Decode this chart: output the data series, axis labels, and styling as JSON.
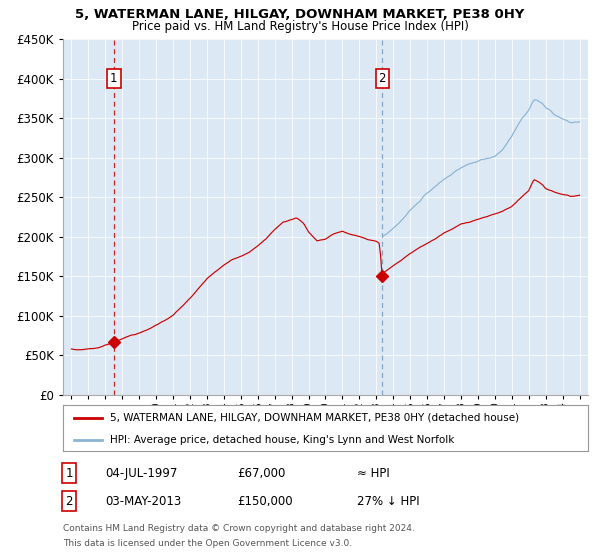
{
  "title": "5, WATERMAN LANE, HILGAY, DOWNHAM MARKET, PE38 0HY",
  "subtitle": "Price paid vs. HM Land Registry's House Price Index (HPI)",
  "legend_line1": "5, WATERMAN LANE, HILGAY, DOWNHAM MARKET, PE38 0HY (detached house)",
  "legend_line2": "HPI: Average price, detached house, King's Lynn and West Norfolk",
  "annotation1_date": "04-JUL-1997",
  "annotation1_price": "£67,000",
  "annotation1_hpi": "≈ HPI",
  "annotation2_date": "03-MAY-2013",
  "annotation2_price": "£150,000",
  "annotation2_hpi": "27% ↓ HPI",
  "footer1": "Contains HM Land Registry data © Crown copyright and database right 2024.",
  "footer2": "This data is licensed under the Open Government Licence v3.0.",
  "bg_color": "#dce9f5",
  "red_color": "#cc0000",
  "blue_color": "#8ab4d4",
  "ylim": [
    0,
    450000
  ],
  "yticks": [
    0,
    50000,
    100000,
    150000,
    200000,
    250000,
    300000,
    350000,
    400000,
    450000
  ],
  "sale1_year": 1997.5,
  "sale1_value": 67000,
  "sale2_year": 2013.35,
  "sale2_value": 150000,
  "xlim_left": 1994.5,
  "xlim_right": 2025.5
}
